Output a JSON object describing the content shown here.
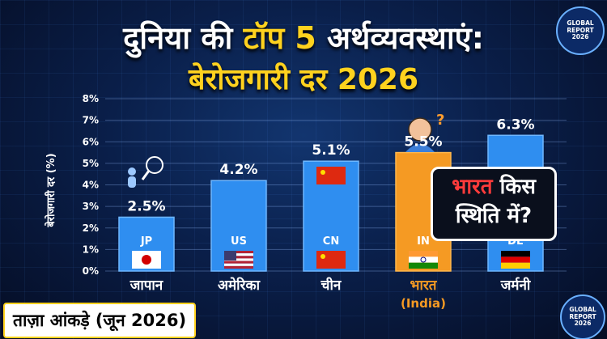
{
  "header": {
    "title_part1": "दुनिया की ",
    "title_highlight": "टॉप 5",
    "title_part2": " अर्थव्यवस्थाएं:",
    "subtitle": "बेरोजगारी दर 2026"
  },
  "badges": {
    "top": [
      "GLOBAL",
      "REPORT",
      "2026"
    ],
    "bottom": [
      "GLOBAL",
      "REPORT",
      "2026"
    ]
  },
  "callout": {
    "highlight": "भारत",
    "line1_rest": " किस",
    "line2": "स्थिति में?"
  },
  "footer": {
    "label": "ताज़ा आंकड़े (जून 2026)"
  },
  "colors": {
    "bar_blue": "#2f8ef0",
    "bar_india": "#f59a23",
    "accent": "#ffd21e",
    "india_label": "#f59a23"
  },
  "chart_data": {
    "type": "bar",
    "title": "बेरोजगारी दर 2026",
    "ylabel": "बेरोजगारी दर (%)",
    "ylim": [
      0,
      8
    ],
    "yticks": [
      "0%",
      "1%",
      "2%",
      "3%",
      "4%",
      "5%",
      "6%",
      "7%",
      "8%"
    ],
    "grid": true,
    "categories": [
      "जापान",
      "अमेरिका",
      "चीन",
      "भारत",
      "जर्मनी"
    ],
    "category_sub": [
      "",
      "",
      "",
      "(India)",
      ""
    ],
    "codes": [
      "JP",
      "US",
      "CN",
      "IN",
      "DE"
    ],
    "values": [
      2.5,
      4.2,
      5.1,
      5.5,
      6.3
    ],
    "value_labels": [
      "2.5%",
      "4.2%",
      "5.1%",
      "5.5%",
      "6.3%"
    ],
    "highlight_index": 3
  }
}
